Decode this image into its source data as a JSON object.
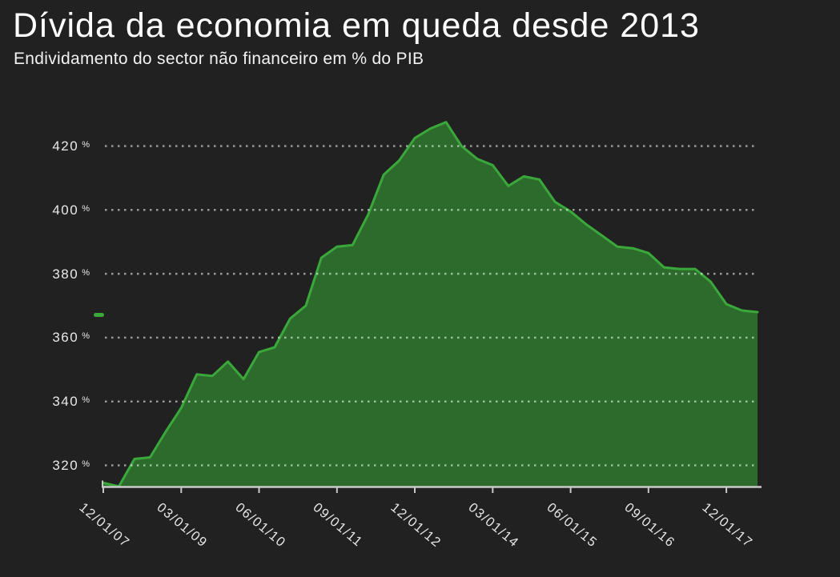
{
  "header": {
    "title": "Dívida da economia em queda desde 2013",
    "subtitle": "Endividamento do sector não financeiro em % do PIB"
  },
  "legend": {
    "swatch_color": "#3aa83a",
    "label": ""
  },
  "chart_data": {
    "type": "area",
    "title": "Dívida da economia em queda desde 2013",
    "subtitle": "Endividamento do sector não financeiro em % do PIB",
    "unit": "% do PIB",
    "x": [
      "12/01/07",
      "03/01/08",
      "06/01/08",
      "09/01/08",
      "12/01/08",
      "03/01/09",
      "06/01/09",
      "09/01/09",
      "12/01/09",
      "03/01/10",
      "06/01/10",
      "09/01/10",
      "12/01/10",
      "03/01/11",
      "06/01/11",
      "09/01/11",
      "12/01/11",
      "03/01/12",
      "06/01/12",
      "09/01/12",
      "12/01/12",
      "03/01/13",
      "06/01/13",
      "09/01/13",
      "12/01/13",
      "03/01/14",
      "06/01/14",
      "09/01/14",
      "12/01/14",
      "03/01/15",
      "06/01/15",
      "09/01/15",
      "12/01/15",
      "03/01/16",
      "06/01/16",
      "09/01/16",
      "12/01/16",
      "03/01/17",
      "06/01/17",
      "09/01/17",
      "12/01/17",
      "03/01/18",
      "06/01/18"
    ],
    "values": [
      314.5,
      313.4,
      322,
      322.5,
      330.5,
      338,
      348.5,
      348,
      352.5,
      347,
      355.5,
      357,
      366,
      370,
      385,
      388.5,
      389,
      398.5,
      411,
      415.5,
      422.5,
      425.5,
      427.5,
      420,
      416,
      414,
      407.5,
      410.5,
      409.5,
      402.5,
      399.5,
      395.5,
      392,
      388.5,
      388,
      386.5,
      382,
      381.5,
      381.5,
      377.5,
      370.5,
      368.5,
      368
    ],
    "x_tick_indices": [
      0,
      5,
      10,
      15,
      20,
      25,
      30,
      35,
      40
    ],
    "x_tick_labels": [
      "12/01/07",
      "03/01/09",
      "06/01/10",
      "09/01/11",
      "12/01/12",
      "03/01/14",
      "06/01/15",
      "09/01/16",
      "12/01/17"
    ],
    "y_ticks": [
      420,
      400,
      380,
      360,
      340,
      320
    ],
    "y_tick_suffix": "%",
    "ylim": [
      313.4,
      428.5
    ],
    "xlabel": "",
    "ylabel": "",
    "grid": "dotted-horizontal",
    "legend_position": "left-middle",
    "colors": {
      "background": "#212121",
      "area_fill": "#2d6b2d",
      "line": "#3aa83a",
      "grid": "rgba(255,255,255,0.55)",
      "axis": "#c9c9c9",
      "text": "#e9e9e9",
      "title": "#ffffff"
    }
  }
}
